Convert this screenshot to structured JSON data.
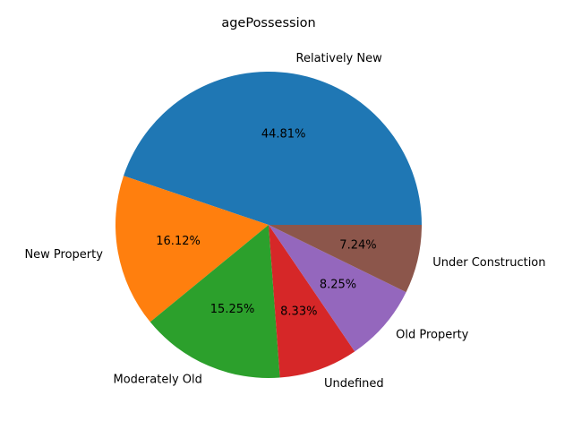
{
  "chart_data": {
    "type": "pie",
    "title": "agePossession",
    "categories": [
      "Relatively New",
      "New Property",
      "Moderately Old",
      "Undefined",
      "Old Property",
      "Under Construction"
    ],
    "values": [
      44.81,
      16.12,
      15.25,
      8.33,
      8.25,
      7.24
    ],
    "value_labels": [
      "44.81%",
      "16.12%",
      "15.25%",
      "8.33%",
      "8.25%",
      "7.24%"
    ],
    "colors": [
      "#1f77b4",
      "#ff7f0e",
      "#2ca02c",
      "#d62728",
      "#9467bd",
      "#8c564b"
    ],
    "start_angle_deg": 0,
    "direction": "counterclockwise",
    "legend": "none"
  }
}
